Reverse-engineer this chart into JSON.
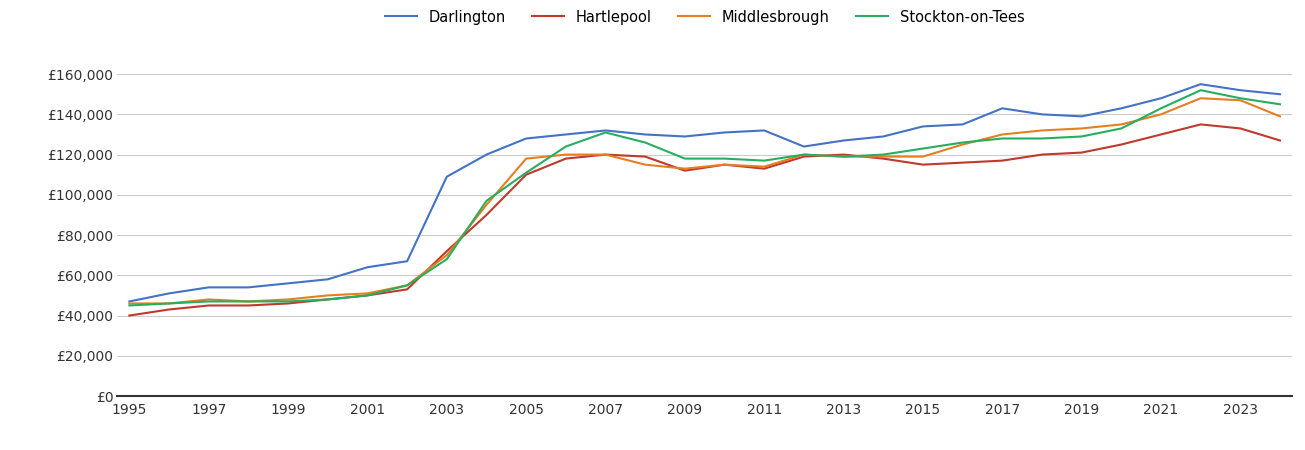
{
  "years": [
    1995,
    1996,
    1997,
    1998,
    1999,
    2000,
    2001,
    2002,
    2003,
    2004,
    2005,
    2006,
    2007,
    2008,
    2009,
    2010,
    2011,
    2012,
    2013,
    2014,
    2015,
    2016,
    2017,
    2018,
    2019,
    2020,
    2021,
    2022,
    2023,
    2024
  ],
  "darlington": [
    47000,
    51000,
    54000,
    54000,
    56000,
    58000,
    64000,
    67000,
    109000,
    120000,
    128000,
    130000,
    132000,
    130000,
    129000,
    131000,
    132000,
    124000,
    127000,
    129000,
    134000,
    135000,
    143000,
    140000,
    139000,
    143000,
    148000,
    155000,
    152000,
    150000
  ],
  "hartlepool": [
    40000,
    43000,
    45000,
    45000,
    46000,
    48000,
    50000,
    53000,
    72000,
    90000,
    110000,
    118000,
    120000,
    119000,
    112000,
    115000,
    113000,
    119000,
    120000,
    118000,
    115000,
    116000,
    117000,
    120000,
    121000,
    125000,
    130000,
    135000,
    133000,
    127000
  ],
  "middlesbrough": [
    46000,
    46000,
    48000,
    47000,
    48000,
    50000,
    51000,
    55000,
    70000,
    95000,
    118000,
    120000,
    120000,
    115000,
    113000,
    115000,
    114000,
    120000,
    119000,
    119000,
    119000,
    125000,
    130000,
    132000,
    133000,
    135000,
    140000,
    148000,
    147000,
    139000
  ],
  "stockton": [
    45000,
    46000,
    47000,
    47000,
    47000,
    48000,
    50000,
    55000,
    68000,
    97000,
    111000,
    124000,
    131000,
    126000,
    118000,
    118000,
    117000,
    120000,
    119000,
    120000,
    123000,
    126000,
    128000,
    128000,
    129000,
    133000,
    143000,
    152000,
    148000,
    145000
  ],
  "colors": {
    "darlington": "#4472c4",
    "hartlepool": "#c0392b",
    "middlesbrough": "#e67e22",
    "stockton": "#27ae60"
  },
  "ylim": [
    0,
    170000
  ],
  "yticks": [
    0,
    20000,
    40000,
    60000,
    80000,
    100000,
    120000,
    140000,
    160000
  ],
  "background_color": "#ffffff",
  "grid_color": "#cccccc",
  "legend_labels": [
    "Darlington",
    "Hartlepool",
    "Middlesbrough",
    "Stockton-on-Tees"
  ]
}
